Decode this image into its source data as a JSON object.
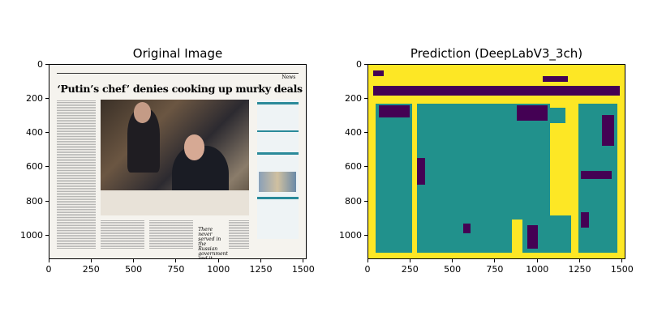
{
  "panels": [
    {
      "title": "Original Image",
      "x_ticks": [
        "0",
        "250",
        "500",
        "750",
        "1000",
        "1250",
        "1500"
      ],
      "y_ticks": [
        "0",
        "200",
        "400",
        "600",
        "800",
        "1000"
      ],
      "x_range": [
        0,
        1520
      ],
      "y_range": [
        1140,
        0
      ],
      "image": {
        "news_label": "News",
        "headline": "‘Putin’s chef’ denies cooking up murky deals",
        "quote": "There never served in the Russian government and it never"
      }
    },
    {
      "title": "Prediction (DeepLabV3_3ch)",
      "x_ticks": [
        "0",
        "250",
        "500",
        "750",
        "1000",
        "1250",
        "1500"
      ],
      "y_ticks": [
        "0",
        "200",
        "400",
        "600",
        "800",
        "1000"
      ],
      "x_range": [
        0,
        1520
      ],
      "y_range": [
        1140,
        0
      ],
      "colors": {
        "background": "#fde725",
        "region": "#21918c",
        "other": "#440154"
      }
    }
  ]
}
